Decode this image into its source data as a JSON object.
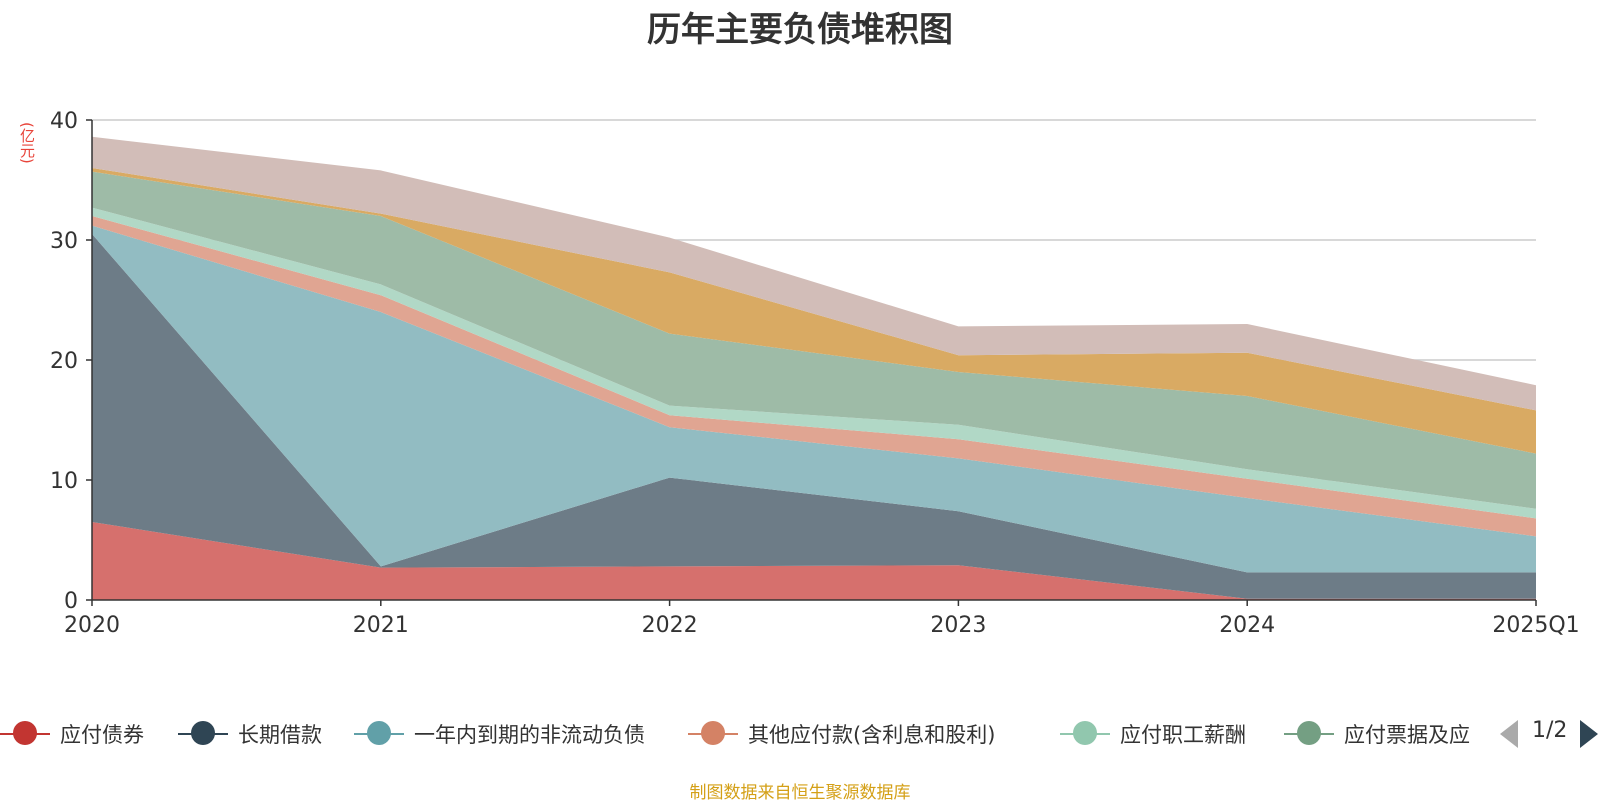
{
  "chart_data": {
    "type": "area",
    "title": "历年主要负债堆积图",
    "unit_label": "亿元",
    "categories": [
      "2020",
      "2021",
      "2022",
      "2023",
      "2024",
      "2025Q1"
    ],
    "ylim": [
      0,
      40
    ],
    "yticks": [
      0,
      10,
      20,
      30,
      40
    ],
    "grid": true,
    "stacked": true,
    "legend_position": "bottom",
    "series": [
      {
        "name": "应付债券",
        "color": "#c23531",
        "fill": "#d6706d",
        "values": [
          6.5,
          2.7,
          2.8,
          2.9,
          0.1,
          0.1
        ]
      },
      {
        "name": "长期借款",
        "color": "#2f4554",
        "fill": "#6d7c87",
        "values": [
          24.0,
          0.1,
          7.4,
          4.5,
          2.2,
          2.2
        ]
      },
      {
        "name": "一年内到期的非流动负债",
        "color": "#61a0a8",
        "fill": "#92bcc2",
        "values": [
          0.7,
          21.2,
          4.2,
          4.4,
          6.2,
          3.0
        ]
      },
      {
        "name": "其他应付款(含利息和股利)",
        "color": "#d48265",
        "fill": "#e0a592",
        "values": [
          0.8,
          1.4,
          1.0,
          1.6,
          1.6,
          1.5
        ]
      },
      {
        "name": "应付职工薪酬",
        "color": "#91c7ae",
        "fill": "#b1d8c6",
        "values": [
          0.7,
          0.9,
          0.8,
          1.2,
          0.8,
          0.8
        ]
      },
      {
        "name": "应付票据及应付账款",
        "color": "#749f83",
        "fill": "#9ebba7",
        "values": [
          3.0,
          5.7,
          6.0,
          4.4,
          6.1,
          4.6
        ]
      },
      {
        "name": "",
        "color": "#ca8622",
        "fill": "#d9aa63",
        "values": [
          0.3,
          0.2,
          5.1,
          1.4,
          3.6,
          3.6
        ]
      },
      {
        "name": "",
        "color": "#bda29a",
        "fill": "#d2bdb8",
        "values": [
          2.6,
          3.6,
          2.9,
          2.4,
          2.4,
          2.1
        ]
      }
    ]
  },
  "legend_visible": [
    "应付债券",
    "长期借款",
    "一年内到期的非流动负债",
    "其他应付款(含利息和股利)",
    "应付职工薪酬",
    "应付票据及应"
  ],
  "pager": {
    "text": "1/2"
  },
  "source_note": "制图数据来自恒生聚源数据库"
}
